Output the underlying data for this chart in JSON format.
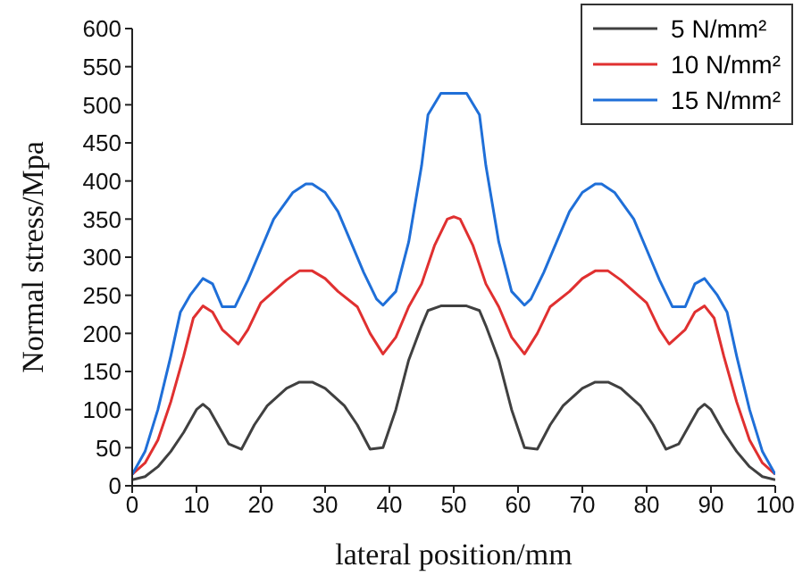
{
  "chart_data": {
    "type": "line",
    "xlabel": "lateral position/mm",
    "ylabel": "Normal stress/Mpa",
    "xlim": [
      0,
      100
    ],
    "xticks": [
      0,
      10,
      20,
      30,
      40,
      50,
      60,
      70,
      80,
      90,
      100
    ],
    "ylim": [
      0,
      600
    ],
    "yticks": [
      0,
      50,
      100,
      150,
      200,
      250,
      300,
      350,
      400,
      450,
      500,
      550,
      600
    ],
    "legend": "top right",
    "marker": "none",
    "line_style": "solid",
    "series": [
      {
        "name": "5 N/mm²",
        "color": "#404040",
        "x": [
          0,
          2,
          4,
          6,
          8,
          10,
          11,
          12,
          14,
          15,
          17,
          19,
          21,
          24,
          26,
          28,
          30,
          33,
          35,
          37,
          39,
          41,
          43,
          45,
          46,
          48,
          50,
          52,
          54,
          55,
          57,
          59,
          61,
          63,
          65,
          67,
          70,
          72,
          74,
          76,
          79,
          81,
          83,
          85,
          86,
          88,
          89,
          90,
          92,
          94,
          96,
          98,
          100
        ],
        "values": [
          8,
          12,
          25,
          45,
          70,
          100,
          107,
          100,
          70,
          55,
          48,
          80,
          105,
          128,
          136,
          136,
          128,
          105,
          80,
          48,
          50,
          100,
          165,
          210,
          230,
          236,
          236,
          236,
          230,
          210,
          165,
          100,
          50,
          48,
          80,
          105,
          128,
          136,
          136,
          128,
          105,
          80,
          48,
          55,
          70,
          100,
          107,
          100,
          70,
          45,
          25,
          12,
          8
        ]
      },
      {
        "name": "10 N/mm²",
        "color": "#e03030",
        "x": [
          0,
          2,
          4,
          6,
          8,
          9.5,
          11,
          12.5,
          14,
          16.5,
          18,
          20,
          22,
          24,
          26,
          28,
          30,
          32,
          35,
          37,
          39,
          41,
          43,
          45,
          47,
          49,
          50,
          51,
          53,
          55,
          57,
          59,
          61,
          63,
          65,
          68,
          70,
          72,
          74,
          76,
          78,
          80,
          82,
          83.5,
          86,
          87.5,
          89,
          90.5,
          92,
          94,
          96,
          98,
          100
        ],
        "values": [
          15,
          30,
          60,
          110,
          170,
          220,
          236,
          228,
          205,
          186,
          205,
          240,
          255,
          270,
          282,
          282,
          272,
          255,
          235,
          200,
          173,
          195,
          235,
          265,
          315,
          350,
          353,
          350,
          315,
          265,
          235,
          195,
          173,
          200,
          235,
          255,
          272,
          282,
          282,
          270,
          255,
          240,
          205,
          186,
          205,
          228,
          236,
          220,
          170,
          110,
          60,
          30,
          15
        ]
      },
      {
        "name": "15 N/mm²",
        "color": "#1f6fd8",
        "x": [
          0,
          2,
          4,
          6,
          7.5,
          9,
          11,
          12.5,
          14,
          16,
          18,
          20,
          22,
          25,
          27,
          28,
          30,
          32,
          34,
          36,
          38,
          39,
          41,
          43,
          45,
          46,
          48,
          50,
          52,
          54,
          55,
          57,
          59,
          61,
          62,
          64,
          66,
          68,
          70,
          72,
          73,
          75,
          78,
          80,
          82,
          84,
          86,
          87.5,
          89,
          91,
          92.5,
          94,
          96,
          98,
          100
        ],
        "values": [
          15,
          45,
          100,
          170,
          228,
          250,
          272,
          265,
          235,
          235,
          270,
          310,
          350,
          385,
          396,
          396,
          385,
          360,
          320,
          280,
          245,
          237,
          255,
          320,
          420,
          487,
          515,
          515,
          515,
          487,
          420,
          320,
          255,
          237,
          245,
          280,
          320,
          360,
          385,
          396,
          396,
          385,
          350,
          310,
          270,
          235,
          235,
          265,
          272,
          250,
          228,
          170,
          100,
          45,
          15
        ]
      }
    ]
  }
}
